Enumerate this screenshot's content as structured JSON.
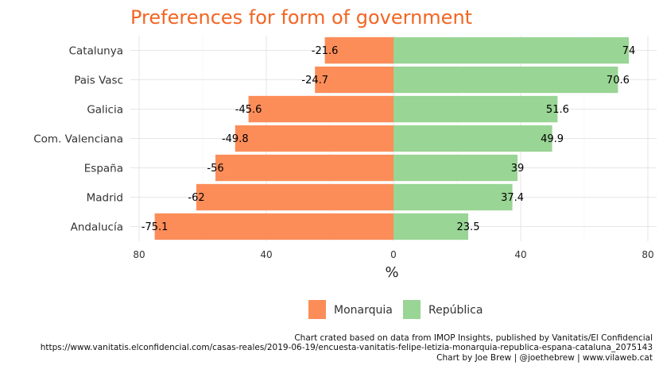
{
  "chart_data": {
    "type": "bar",
    "orientation": "horizontal-diverging",
    "title": "Preferences for form of government",
    "xlabel": "%",
    "ylabel": "",
    "categories": [
      "Catalunya",
      "Pais Vasc",
      "Galicia",
      "Com. Valenciana",
      "España",
      "Madrid",
      "Andalucía"
    ],
    "series": [
      {
        "name": "Monarquia",
        "color": "#fc8d59",
        "values": [
          -21.6,
          -24.7,
          -45.6,
          -49.8,
          -56,
          -62,
          -75.1
        ]
      },
      {
        "name": "República",
        "color": "#99d594",
        "values": [
          74,
          70.6,
          51.6,
          49.9,
          39,
          37.4,
          23.5
        ]
      }
    ],
    "xlim": [
      -80,
      80
    ],
    "xticks": [
      -80,
      -40,
      0,
      40,
      80
    ],
    "xtick_labels": [
      "80",
      "40",
      "0",
      "40",
      "80"
    ],
    "grid": true,
    "legend_position": "bottom",
    "title_color": "#f26522",
    "caption": [
      "Chart crated based on data from IMOP Insights, published by  Vanitatis/El Confidencial",
      "https://www.vanitatis.elconfidencial.com/casas-reales/2019-06-19/encuesta-vanitatis-felipe-letizia-monarquia-republica-espana-cataluna_2075143",
      "Chart by Joe Brew | @joethebrew | www.vilaweb.cat"
    ]
  }
}
